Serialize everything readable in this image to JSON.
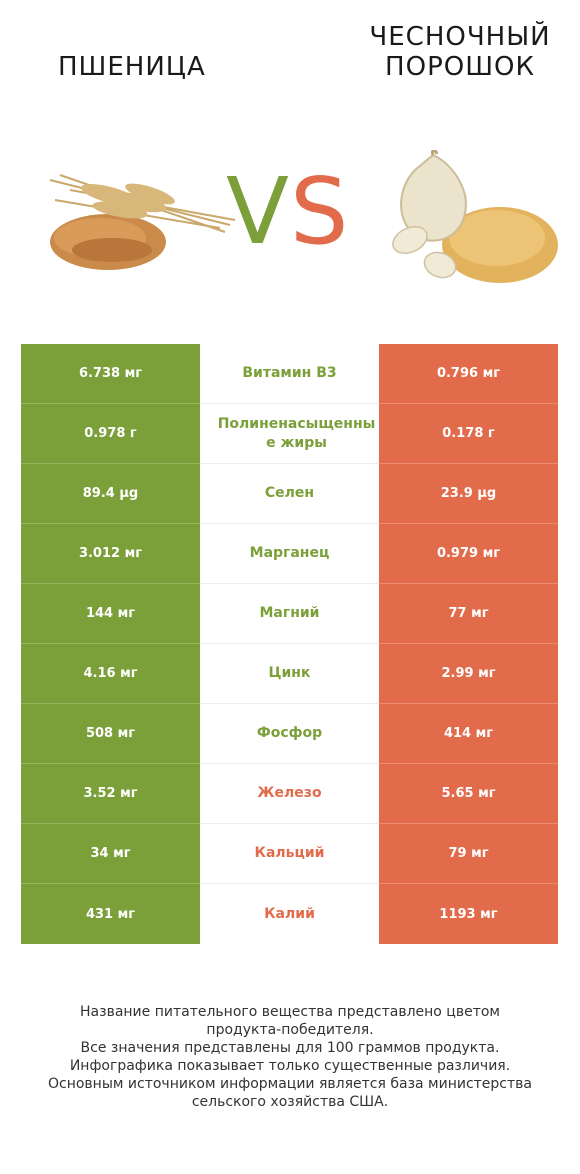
{
  "header": {
    "left_title": "ПШЕНИЦА",
    "right_title_line1": "ЧЕСНОЧНЫЙ",
    "right_title_line2": "ПОРОШОК",
    "vs_v": "V",
    "vs_s": "S"
  },
  "colors": {
    "left_product": "#7ba03a",
    "right_product": "#e16b4b"
  },
  "rows": [
    {
      "left": "6.738 мг",
      "nutrient": "Витамин B3",
      "right": "0.796 мг",
      "winner": "left"
    },
    {
      "left": "0.978 г",
      "nutrient": "Полиненасыщенные жиры",
      "right": "0.178 г",
      "winner": "left"
    },
    {
      "left": "89.4 µg",
      "nutrient": "Селен",
      "right": "23.9 µg",
      "winner": "left"
    },
    {
      "left": "3.012 мг",
      "nutrient": "Марганец",
      "right": "0.979 мг",
      "winner": "left"
    },
    {
      "left": "144 мг",
      "nutrient": "Магний",
      "right": "77 мг",
      "winner": "left"
    },
    {
      "left": "4.16 мг",
      "nutrient": "Цинк",
      "right": "2.99 мг",
      "winner": "left"
    },
    {
      "left": "508 мг",
      "nutrient": "Фосфор",
      "right": "414 мг",
      "winner": "left"
    },
    {
      "left": "3.52 мг",
      "nutrient": "Железо",
      "right": "5.65 мг",
      "winner": "right"
    },
    {
      "left": "34 мг",
      "nutrient": "Кальций",
      "right": "79 мг",
      "winner": "right"
    },
    {
      "left": "431 мг",
      "nutrient": "Калий",
      "right": "1193 мг",
      "winner": "right"
    }
  ],
  "footer": {
    "line1": "Название питательного вещества представлено цветом",
    "line2": "продукта-победителя.",
    "line3": "Все значения представлены для 100 граммов продукта.",
    "line4": "Инфографика показывает только существенные различия.",
    "line5": "Основным источником информации является база министерства",
    "line6": "сельского хозяйства США."
  }
}
